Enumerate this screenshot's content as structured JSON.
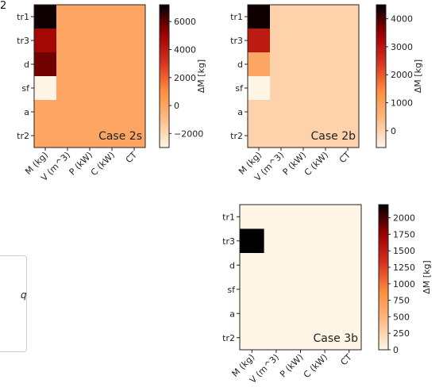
{
  "page": {
    "edge_text": "2",
    "legend_fragment": "q"
  },
  "chart_data": [
    {
      "type": "heatmap",
      "title": "Case 2s",
      "rows": [
        "tr1",
        "tr3",
        "d",
        "sf",
        "a",
        "tr2"
      ],
      "columns": [
        "M (kg)",
        "V (m^3)",
        "P (kW)",
        "C (kW)",
        "CT"
      ],
      "values": [
        [
          7000,
          0,
          0,
          0,
          0
        ],
        [
          4800,
          0,
          0,
          0,
          0
        ],
        [
          5700,
          0,
          0,
          0,
          0
        ],
        [
          -3000,
          0,
          0,
          0,
          0
        ],
        [
          0,
          0,
          0,
          0,
          0
        ],
        [
          0,
          0,
          0,
          0,
          0
        ]
      ],
      "colorbar": {
        "label": "ΔM [kg]",
        "vmin": -3000,
        "vmax": 7200,
        "ticks": [
          6000,
          4000,
          2000,
          0,
          -2000
        ]
      }
    },
    {
      "type": "heatmap",
      "title": "Case 2b",
      "rows": [
        "tr1",
        "tr3",
        "d",
        "sf",
        "a",
        "tr2"
      ],
      "columns": [
        "M (kg)",
        "V (m^3)",
        "P (kW)",
        "C (kW)",
        "CT"
      ],
      "values": [
        [
          4400,
          0,
          0,
          0,
          0
        ],
        [
          2900,
          0,
          0,
          0,
          0
        ],
        [
          900,
          0,
          0,
          0,
          0
        ],
        [
          -600,
          0,
          0,
          0,
          0
        ],
        [
          0,
          0,
          0,
          0,
          0
        ],
        [
          0,
          0,
          0,
          0,
          0
        ]
      ],
      "colorbar": {
        "label": "ΔM [kg]",
        "vmin": -600,
        "vmax": 4500,
        "ticks": [
          4000,
          3000,
          2000,
          1000,
          0
        ]
      }
    },
    {
      "type": "heatmap",
      "title": "Case 3b",
      "rows": [
        "tr1",
        "tr3",
        "d",
        "sf",
        "a",
        "tr2"
      ],
      "columns": [
        "M (kg)",
        "V (m^3)",
        "P (kW)",
        "C (kW)",
        "CT"
      ],
      "values": [
        [
          0,
          0,
          0,
          0,
          0
        ],
        [
          2200,
          0,
          0,
          0,
          0
        ],
        [
          0,
          0,
          0,
          0,
          0
        ],
        [
          0,
          0,
          0,
          0,
          0
        ],
        [
          0,
          0,
          0,
          0,
          0
        ],
        [
          0,
          0,
          0,
          0,
          0
        ]
      ],
      "colorbar": {
        "label": "ΔM [kg]",
        "vmin": 0,
        "vmax": 2200,
        "ticks": [
          2000,
          1750,
          1500,
          1250,
          1000,
          750,
          500,
          250,
          0
        ]
      }
    }
  ]
}
